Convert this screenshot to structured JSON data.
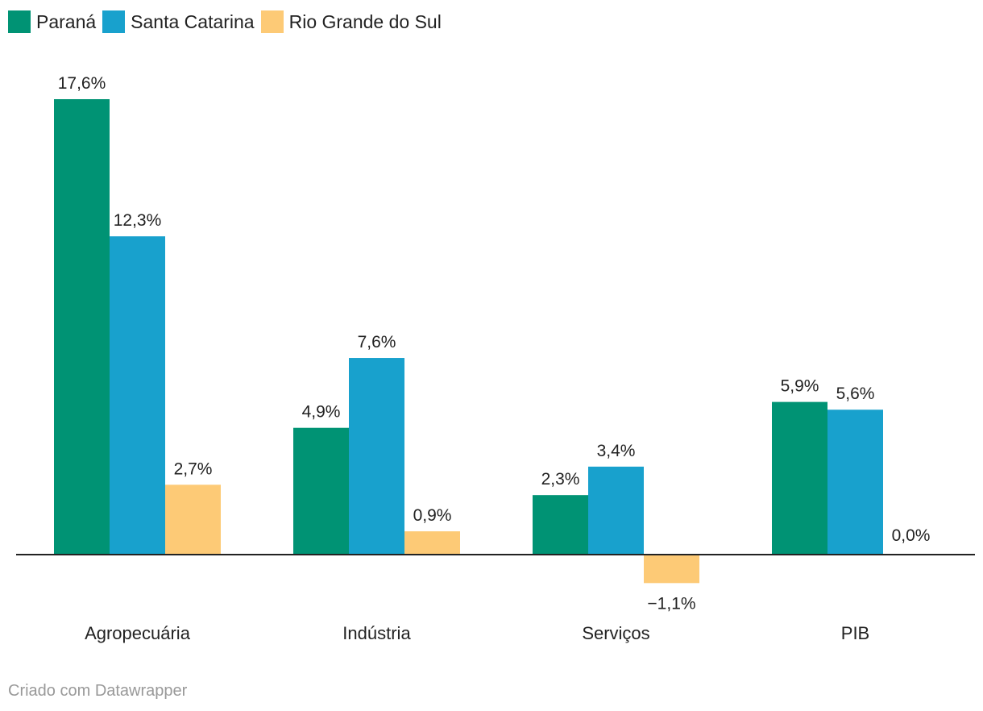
{
  "legend": [
    {
      "name": "Paraná",
      "color": "#009374"
    },
    {
      "name": "Santa Catarina",
      "color": "#18a1cd"
    },
    {
      "name": "Rio Grande do Sul",
      "color": "#fdca76"
    }
  ],
  "footer": {
    "text": "Criado com Datawrapper"
  },
  "chart_data": {
    "type": "bar",
    "title": "",
    "xlabel": "",
    "ylabel": "",
    "grid": false,
    "legend_position": "top-left",
    "categories": [
      "Agropecuária",
      "Indústria",
      "Serviços",
      "PIB"
    ],
    "series": [
      {
        "name": "Paraná",
        "color": "#009374",
        "values": [
          17.6,
          4.9,
          2.3,
          5.9
        ],
        "labels": [
          "17,6%",
          "4,9%",
          "2,3%",
          "5,9%"
        ]
      },
      {
        "name": "Santa Catarina",
        "color": "#18a1cd",
        "values": [
          12.3,
          7.6,
          3.4,
          5.6
        ],
        "labels": [
          "12,3%",
          "7,6%",
          "3,4%",
          "5,6%"
        ]
      },
      {
        "name": "Rio Grande do Sul",
        "color": "#fdca76",
        "values": [
          2.7,
          0.9,
          -1.1,
          0.0
        ],
        "labels": [
          "2,7%",
          "0,9%",
          "−1,1%",
          "0,0%"
        ]
      }
    ],
    "ylim": [
      -1.1,
      17.6
    ]
  }
}
